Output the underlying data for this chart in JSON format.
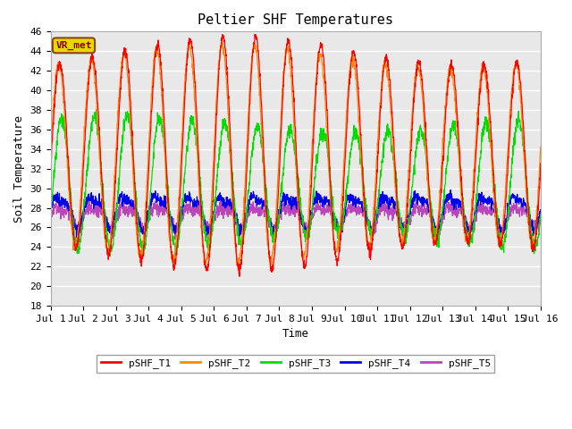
{
  "title": "Peltier SHF Temperatures",
  "xlabel": "Time",
  "ylabel": "Soil Temperature",
  "ylim": [
    18,
    46
  ],
  "xlim": [
    0,
    15
  ],
  "xtick_positions": [
    0,
    1,
    2,
    3,
    4,
    5,
    6,
    7,
    8,
    9,
    10,
    11,
    12,
    13,
    14,
    15
  ],
  "xtick_labels": [
    "Jul 1",
    "Jul 2",
    "Jul 3",
    "Jul 4",
    "Jul 5",
    "Jul 6",
    "Jul 7",
    "Jul 8",
    "Jul 9",
    "Jul 10",
    "Jul 11",
    "Jul 12",
    "Jul 13",
    "Jul 14",
    "Jul 15",
    "Jul 16"
  ],
  "ytick_positions": [
    18,
    20,
    22,
    24,
    26,
    28,
    30,
    32,
    34,
    36,
    38,
    40,
    42,
    44,
    46
  ],
  "colors": {
    "T1": "#ff0000",
    "T2": "#ff8800",
    "T3": "#00dd00",
    "T4": "#0000ee",
    "T5": "#bb44bb"
  },
  "legend_labels": [
    "pSHF_T1",
    "pSHF_T2",
    "pSHF_T3",
    "pSHF_T4",
    "pSHF_T5"
  ],
  "annotation_text": "VR_met",
  "plot_bg_color": "#e8e8e8",
  "fig_bg_color": "#ffffff",
  "grid_color": "#ffffff",
  "linewidth": 0.9,
  "title_fontsize": 11,
  "axis_label_fontsize": 9,
  "tick_fontsize": 8
}
